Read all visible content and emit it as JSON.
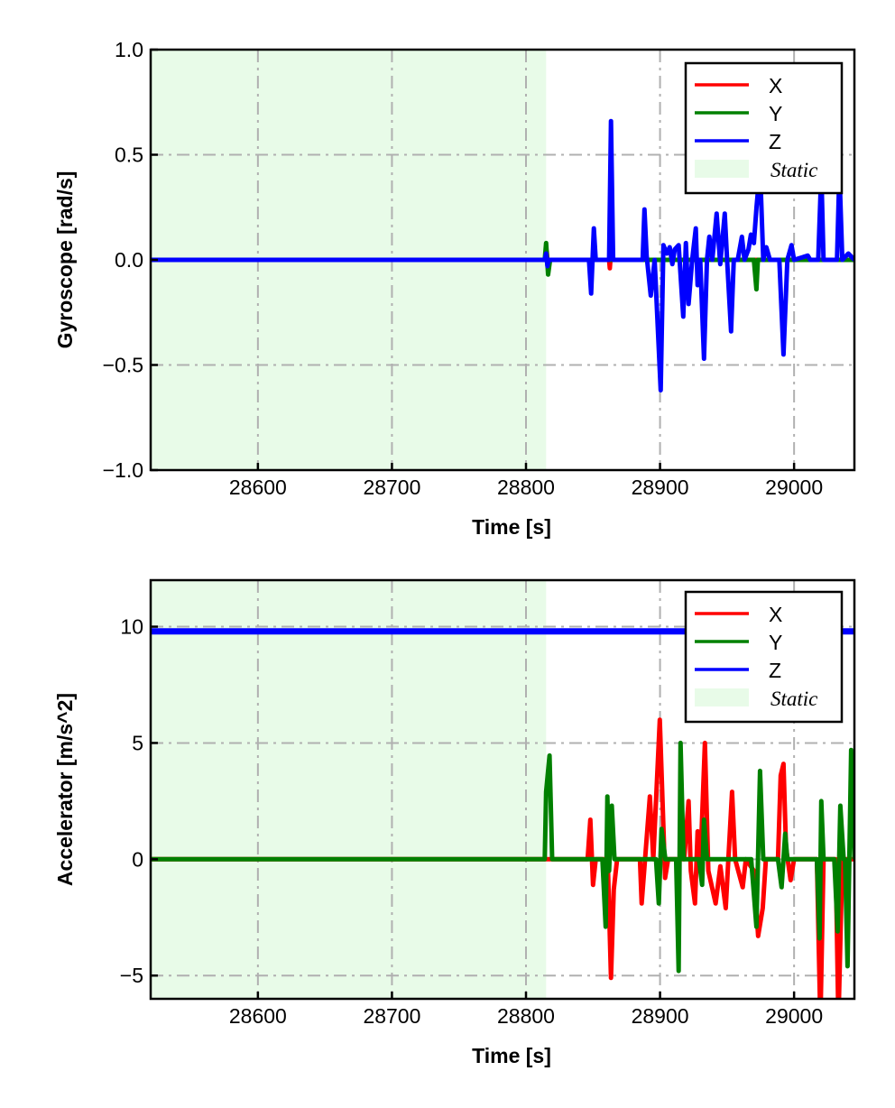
{
  "chart_data": [
    {
      "type": "line",
      "title": "",
      "xlabel": "Time [s]",
      "ylabel": "Gyroscope [rad/s]",
      "xlim": [
        28520,
        29045
      ],
      "ylim": [
        -1.0,
        1.0
      ],
      "xticks": [
        28600,
        28700,
        28800,
        28900,
        29000
      ],
      "xtick_labels": [
        "28600",
        "28700",
        "28800",
        "28900",
        "29000"
      ],
      "yticks": [
        1.0,
        0.5,
        0.0,
        -0.5,
        -1.0
      ],
      "ytick_labels": [
        "1.0",
        "0.5",
        "0.0",
        "−0.5",
        "−1.0"
      ],
      "grid": true,
      "legend_position": "top-right",
      "static_region": {
        "label": "Static",
        "x": [
          28520,
          28815
        ],
        "color": "#e8fbe8"
      },
      "series": [
        {
          "name": "X",
          "color": "#ff0000",
          "points": [
            [
              28520,
              0
            ],
            [
              28814,
              0
            ],
            [
              28815.5,
              0.04
            ],
            [
              28816.5,
              -0.04
            ],
            [
              28818,
              0
            ],
            [
              28862,
              0
            ],
            [
              28862.5,
              -0.04
            ],
            [
              28863,
              0
            ],
            [
              29045,
              0
            ]
          ]
        },
        {
          "name": "Y",
          "color": "#008000",
          "points": [
            [
              28520,
              0
            ],
            [
              28814,
              0
            ],
            [
              28815,
              0.08
            ],
            [
              28816.5,
              -0.07
            ],
            [
              28818,
              0
            ],
            [
              28970,
              0
            ],
            [
              28971.9,
              -0.14
            ],
            [
              28973,
              0
            ],
            [
              29045,
              0
            ]
          ]
        },
        {
          "name": "Z",
          "color": "#0000ff",
          "points": [
            [
              28520,
              0
            ],
            [
              28814,
              0
            ],
            [
              28815,
              0.03
            ],
            [
              28816,
              -0.03
            ],
            [
              28817,
              0
            ],
            [
              28847,
              0
            ],
            [
              28848.6,
              -0.16
            ],
            [
              28850.6,
              0.15
            ],
            [
              28852,
              0
            ],
            [
              28862,
              0
            ],
            [
              28863.4,
              0.66
            ],
            [
              28865,
              0
            ],
            [
              28887,
              0
            ],
            [
              28888.4,
              0.24
            ],
            [
              28890,
              0.02
            ],
            [
              28893.1,
              -0.17
            ],
            [
              28896,
              0
            ],
            [
              28900.5,
              -0.62
            ],
            [
              28902.5,
              0.07
            ],
            [
              28905,
              0.03
            ],
            [
              28907.2,
              0.06
            ],
            [
              28909.2,
              -0.02
            ],
            [
              28911,
              0.05
            ],
            [
              28913.9,
              0.07
            ],
            [
              28917.3,
              -0.27
            ],
            [
              28919.3,
              0.08
            ],
            [
              28921.3,
              -0.21
            ],
            [
              28924,
              0
            ],
            [
              28926.7,
              0.15
            ],
            [
              28928,
              -0.12
            ],
            [
              28930,
              0
            ],
            [
              28932.8,
              -0.47
            ],
            [
              28935,
              0
            ],
            [
              28936.8,
              0.11
            ],
            [
              28939,
              0
            ],
            [
              28942.2,
              0.22
            ],
            [
              28944.9,
              -0.02
            ],
            [
              28948.3,
              0.22
            ],
            [
              28950,
              0
            ],
            [
              28953,
              -0.34
            ],
            [
              28955,
              0
            ],
            [
              28958,
              0
            ],
            [
              28961.1,
              0.11
            ],
            [
              28963,
              0
            ],
            [
              28966,
              0.05
            ],
            [
              28967.8,
              0.12
            ],
            [
              28970,
              0.08
            ],
            [
              28972,
              0.25
            ],
            [
              28974.6,
              0.44
            ],
            [
              28977,
              0
            ],
            [
              28979.3,
              0.06
            ],
            [
              28982,
              0
            ],
            [
              28989,
              0
            ],
            [
              28992.1,
              -0.45
            ],
            [
              28995,
              0
            ],
            [
              28998.1,
              0.07
            ],
            [
              29000,
              0
            ],
            [
              29010.2,
              0.02
            ],
            [
              29012,
              0
            ],
            [
              29018,
              0
            ],
            [
              29020.3,
              0.42
            ],
            [
              29022,
              0
            ],
            [
              29032,
              0
            ],
            [
              29033.8,
              0.42
            ],
            [
              29036,
              0
            ],
            [
              29040.5,
              0.03
            ],
            [
              29045,
              0
            ]
          ]
        }
      ]
    },
    {
      "type": "line",
      "title": "",
      "xlabel": "Time [s]",
      "ylabel": "Accelerator [m/s^2]",
      "xlim": [
        28520,
        29045
      ],
      "ylim": [
        -6,
        12
      ],
      "xticks": [
        28600,
        28700,
        28800,
        28900,
        29000
      ],
      "xtick_labels": [
        "28600",
        "28700",
        "28800",
        "28900",
        "29000"
      ],
      "yticks": [
        10,
        5,
        0,
        -5
      ],
      "ytick_labels": [
        "10",
        "5",
        "0",
        "−5"
      ],
      "grid": true,
      "legend_position": "top-right",
      "static_region": {
        "label": "Static",
        "x": [
          28520,
          28815
        ],
        "color": "#e8fbe8"
      },
      "series": [
        {
          "name": "X",
          "color": "#ff0000",
          "points": [
            [
              28520,
              0
            ],
            [
              28846,
              0
            ],
            [
              28848,
              1.7
            ],
            [
              28850,
              -1.1
            ],
            [
              28852,
              0
            ],
            [
              28861,
              0
            ],
            [
              28863.4,
              -5.1
            ],
            [
              28865.5,
              -1.3
            ],
            [
              28868,
              0
            ],
            [
              28885,
              0
            ],
            [
              28886.3,
              -1.9
            ],
            [
              28892.4,
              2.7
            ],
            [
              28895,
              0
            ],
            [
              28899.8,
              6.0
            ],
            [
              28903.8,
              -0.8
            ],
            [
              28906,
              0
            ],
            [
              28918,
              0
            ],
            [
              28921.3,
              2.5
            ],
            [
              28923,
              -0.5
            ],
            [
              28926.1,
              -1.9
            ],
            [
              28928,
              1.2
            ],
            [
              28930,
              -0.4
            ],
            [
              28933.5,
              5.0
            ],
            [
              28936,
              -0.5
            ],
            [
              28941.5,
              -1.9
            ],
            [
              28945,
              -0.3
            ],
            [
              28949,
              -2.1
            ],
            [
              28951,
              0
            ],
            [
              28953.7,
              2.9
            ],
            [
              28956,
              0
            ],
            [
              28961.7,
              -1.2
            ],
            [
              28964,
              0
            ],
            [
              28970,
              -0.5
            ],
            [
              28973.2,
              -3.3
            ],
            [
              28976.6,
              -2.1
            ],
            [
              28979,
              0
            ],
            [
              28988,
              0
            ],
            [
              28990,
              3.6
            ],
            [
              28992.1,
              4.1
            ],
            [
              28994,
              0.5
            ],
            [
              28997.4,
              -0.9
            ],
            [
              29000,
              0
            ],
            [
              29017,
              0
            ],
            [
              29019.6,
              -7
            ],
            [
              29022,
              0
            ],
            [
              29031,
              0
            ],
            [
              29033.1,
              -7
            ],
            [
              29036,
              0
            ],
            [
              29045,
              0
            ]
          ]
        },
        {
          "name": "Y",
          "color": "#008000",
          "points": [
            [
              28520,
              0
            ],
            [
              28814,
              0
            ],
            [
              28815,
              2.9
            ],
            [
              28817.6,
              4.46
            ],
            [
              28819.5,
              0
            ],
            [
              28857,
              0
            ],
            [
              28859.4,
              -2.9
            ],
            [
              28860.7,
              2.7
            ],
            [
              28862,
              -0.5
            ],
            [
              28864,
              2.3
            ],
            [
              28866,
              0
            ],
            [
              28897,
              0
            ],
            [
              28899.1,
              -1.9
            ],
            [
              28901.1,
              1.3
            ],
            [
              28904,
              0
            ],
            [
              28912,
              0
            ],
            [
              28913.9,
              -4.8
            ],
            [
              28915.3,
              5.0
            ],
            [
              28917.5,
              0
            ],
            [
              28929,
              0
            ],
            [
              28931.4,
              -1.1
            ],
            [
              28932.8,
              1.7
            ],
            [
              28935,
              0
            ],
            [
              28968,
              0
            ],
            [
              28971.9,
              -2.9
            ],
            [
              28974.6,
              3.8
            ],
            [
              28977,
              0
            ],
            [
              28988,
              0
            ],
            [
              28990.7,
              -1.2
            ],
            [
              28993.4,
              1.1
            ],
            [
              28995,
              0
            ],
            [
              29017,
              0
            ],
            [
              29019,
              -3.4
            ],
            [
              29020.3,
              2.5
            ],
            [
              29022,
              0
            ],
            [
              29030,
              0
            ],
            [
              29032.5,
              -3.1
            ],
            [
              29034.5,
              2.3
            ],
            [
              29037,
              0
            ],
            [
              29038,
              0
            ],
            [
              29039.9,
              -4.6
            ],
            [
              29042.6,
              4.7
            ],
            [
              29045,
              0
            ]
          ]
        },
        {
          "name": "Z",
          "color": "#0000ff",
          "points": [
            [
              28520,
              9.8
            ],
            [
              29045,
              9.8
            ]
          ]
        }
      ]
    }
  ]
}
